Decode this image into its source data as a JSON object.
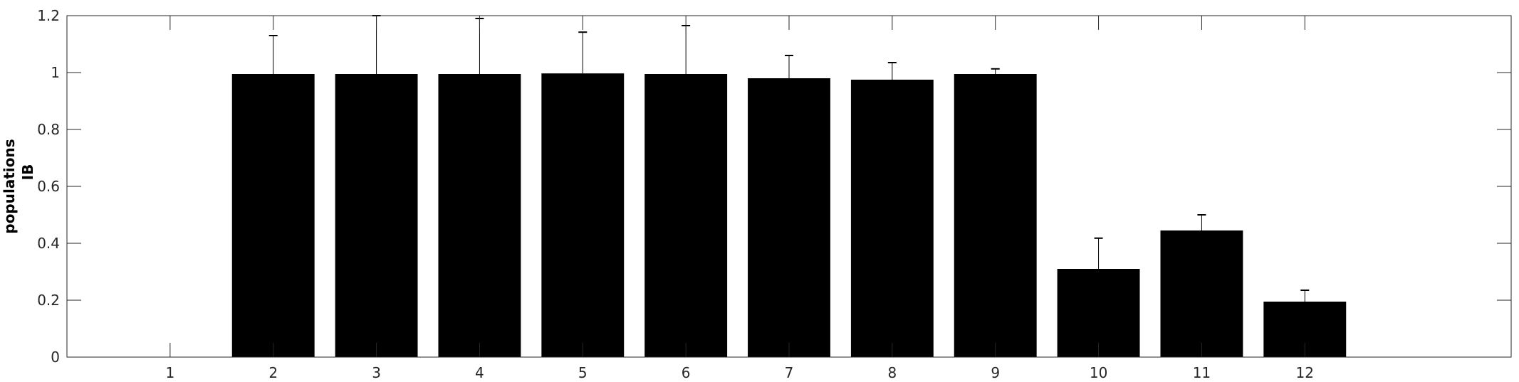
{
  "chart_data": {
    "type": "bar",
    "categories": [
      "1",
      "2",
      "3",
      "4",
      "5",
      "6",
      "7",
      "8",
      "9",
      "10",
      "11",
      "12"
    ],
    "values": [
      0,
      0.995,
      0.995,
      0.995,
      0.997,
      0.995,
      0.98,
      0.975,
      0.995,
      0.31,
      0.445,
      0.195
    ],
    "error_upper": [
      0,
      0.135,
      0.205,
      0.195,
      0.145,
      0.17,
      0.08,
      0.06,
      0.018,
      0.108,
      0.055,
      0.04
    ],
    "yticks": [
      "0",
      "0.2",
      "0.4",
      "0.6",
      "0.8",
      "1",
      "1.2"
    ],
    "ylim": [
      0,
      1.2
    ],
    "xlim": [
      0,
      14
    ],
    "title": "",
    "xlabel": "",
    "ylabel_lines": [
      "populations",
      "IB"
    ],
    "bar_color": "#000000",
    "grid": false,
    "legend": "none"
  }
}
